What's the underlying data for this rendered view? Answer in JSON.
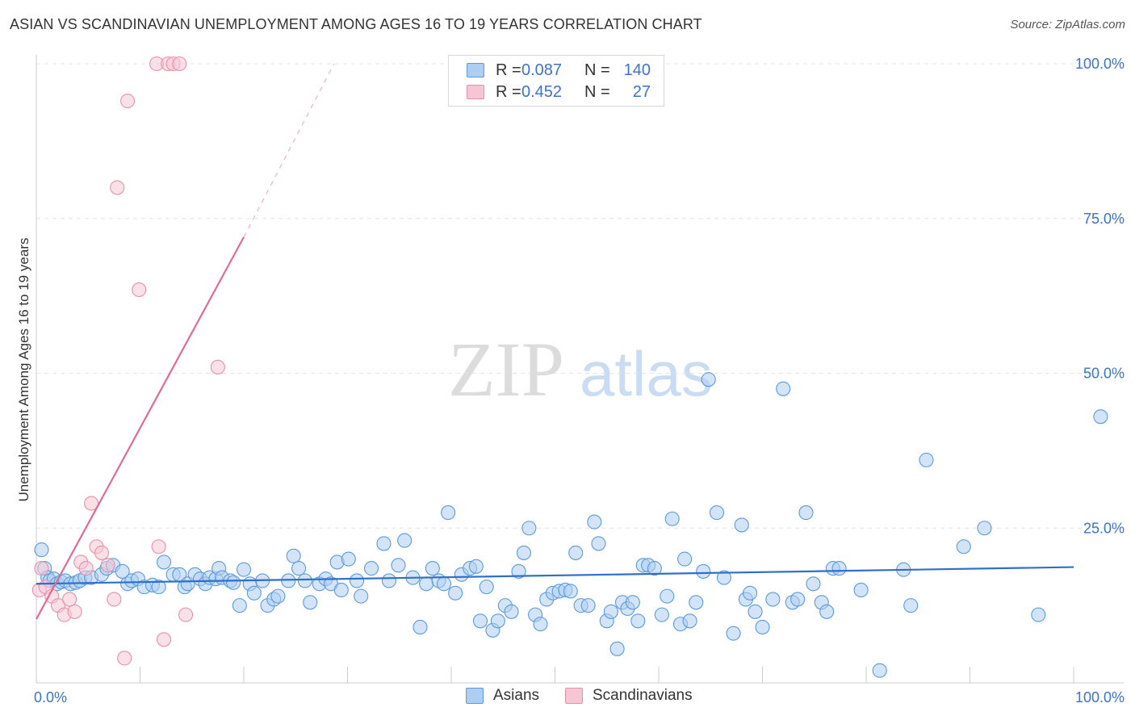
{
  "title": "ASIAN VS SCANDINAVIAN UNEMPLOYMENT AMONG AGES 16 TO 19 YEARS CORRELATION CHART",
  "source": "Source: ZipAtlas.com",
  "watermark": {
    "zip": "ZIP",
    "atlas": "atlas"
  },
  "colors": {
    "asians": "#5b9bdc",
    "asians_fill": "#aecdf2",
    "asians_line": "#2f6fc9",
    "scandinavians": "#e890aa",
    "scandinavians_fill": "#f6c6d4",
    "scandinavians_line": "#e06a95",
    "tick_label": "#3d72c8",
    "grid": "#e4e4e4"
  },
  "legend": {
    "rows": [
      {
        "r_label": "R =",
        "r_value": "0.087",
        "n_label": "N =",
        "n_value": "140"
      },
      {
        "r_label": "R =",
        "r_value": "0.452",
        "n_label": "N =",
        "n_value": "27"
      }
    ]
  },
  "chart_data": {
    "type": "scatter",
    "title": "ASIAN VS SCANDINAVIAN UNEMPLOYMENT AMONG AGES 16 TO 19 YEARS CORRELATION CHART",
    "xlabel": "",
    "ylabel": "Unemployment Among Ages 16 to 19 years",
    "xlim": [
      0,
      100
    ],
    "ylim": [
      0,
      100
    ],
    "x_tick_labels": [
      {
        "value": 0,
        "label": "0.0%"
      },
      {
        "value": 100,
        "label": "100.0%"
      }
    ],
    "y_tick_labels": [
      {
        "value": 25,
        "label": "25.0%"
      },
      {
        "value": 50,
        "label": "50.0%"
      },
      {
        "value": 75,
        "label": "75.0%"
      },
      {
        "value": 100,
        "label": "100.0%"
      }
    ],
    "grid": true,
    "series": [
      {
        "name": "Asians",
        "r": 0.087,
        "n": 140,
        "trend": {
          "x0": 0,
          "y0": 16.0,
          "x1": 100,
          "y1": 18.7,
          "dashed_from": null
        },
        "points": [
          [
            0.5,
            21.5
          ],
          [
            0.8,
            18.5
          ],
          [
            1.1,
            17.0
          ],
          [
            1.3,
            16.5
          ],
          [
            1.7,
            16.8
          ],
          [
            2.0,
            16.0
          ],
          [
            2.4,
            16.3
          ],
          [
            2.8,
            16.5
          ],
          [
            3.3,
            16.0
          ],
          [
            3.8,
            16.2
          ],
          [
            4.2,
            16.5
          ],
          [
            4.7,
            17.0
          ],
          [
            5.3,
            17.0
          ],
          [
            6.3,
            17.5
          ],
          [
            6.8,
            18.5
          ],
          [
            7.4,
            19.0
          ],
          [
            8.3,
            18.0
          ],
          [
            8.8,
            16.0
          ],
          [
            9.2,
            16.5
          ],
          [
            9.8,
            16.8
          ],
          [
            10.4,
            15.5
          ],
          [
            11.2,
            15.8
          ],
          [
            11.8,
            15.5
          ],
          [
            12.3,
            19.5
          ],
          [
            13.2,
            17.5
          ],
          [
            13.8,
            17.5
          ],
          [
            14.3,
            15.5
          ],
          [
            14.6,
            16.0
          ],
          [
            15.3,
            17.5
          ],
          [
            15.8,
            16.8
          ],
          [
            16.3,
            16.0
          ],
          [
            16.7,
            17.0
          ],
          [
            17.3,
            16.8
          ],
          [
            17.6,
            18.5
          ],
          [
            17.9,
            17.0
          ],
          [
            18.7,
            16.5
          ],
          [
            19.0,
            16.2
          ],
          [
            19.6,
            12.5
          ],
          [
            20.0,
            18.3
          ],
          [
            20.6,
            16.0
          ],
          [
            21.0,
            14.5
          ],
          [
            21.8,
            16.5
          ],
          [
            22.3,
            12.5
          ],
          [
            22.9,
            13.5
          ],
          [
            23.3,
            14.0
          ],
          [
            24.3,
            16.5
          ],
          [
            24.8,
            20.5
          ],
          [
            25.3,
            18.5
          ],
          [
            25.9,
            16.5
          ],
          [
            26.4,
            13.0
          ],
          [
            27.3,
            16.0
          ],
          [
            27.9,
            16.8
          ],
          [
            28.4,
            16.0
          ],
          [
            29.0,
            19.5
          ],
          [
            29.4,
            15.0
          ],
          [
            30.1,
            20.0
          ],
          [
            30.9,
            16.5
          ],
          [
            31.3,
            14.0
          ],
          [
            32.3,
            18.5
          ],
          [
            33.5,
            22.5
          ],
          [
            34.0,
            16.5
          ],
          [
            34.9,
            19.0
          ],
          [
            35.5,
            23.0
          ],
          [
            36.3,
            17.0
          ],
          [
            37.0,
            9.0
          ],
          [
            37.6,
            16.0
          ],
          [
            38.2,
            18.5
          ],
          [
            38.8,
            16.5
          ],
          [
            39.3,
            16.0
          ],
          [
            39.7,
            27.5
          ],
          [
            40.4,
            14.5
          ],
          [
            41.0,
            17.5
          ],
          [
            41.8,
            18.5
          ],
          [
            42.4,
            18.8
          ],
          [
            42.8,
            10.0
          ],
          [
            43.4,
            15.5
          ],
          [
            44.0,
            8.5
          ],
          [
            44.5,
            10.0
          ],
          [
            45.2,
            12.5
          ],
          [
            45.8,
            11.5
          ],
          [
            46.5,
            18.0
          ],
          [
            47.0,
            21.0
          ],
          [
            47.5,
            25.0
          ],
          [
            48.1,
            11.0
          ],
          [
            48.6,
            9.5
          ],
          [
            49.2,
            13.5
          ],
          [
            49.8,
            14.5
          ],
          [
            50.4,
            14.8
          ],
          [
            51.0,
            15.0
          ],
          [
            51.5,
            14.8
          ],
          [
            52.0,
            21.0
          ],
          [
            52.5,
            12.5
          ],
          [
            53.2,
            12.5
          ],
          [
            53.8,
            26.0
          ],
          [
            54.2,
            22.5
          ],
          [
            55.0,
            10.0
          ],
          [
            55.4,
            11.5
          ],
          [
            56.0,
            5.5
          ],
          [
            56.5,
            13.0
          ],
          [
            57.0,
            12.0
          ],
          [
            57.5,
            13.0
          ],
          [
            58.0,
            10.0
          ],
          [
            58.5,
            19.0
          ],
          [
            59.0,
            19.0
          ],
          [
            59.6,
            18.5
          ],
          [
            60.3,
            11.0
          ],
          [
            60.8,
            14.0
          ],
          [
            61.3,
            26.5
          ],
          [
            62.1,
            9.5
          ],
          [
            62.5,
            20.0
          ],
          [
            63.0,
            10.0
          ],
          [
            63.6,
            13.0
          ],
          [
            64.3,
            18.0
          ],
          [
            64.8,
            49.0
          ],
          [
            65.6,
            27.5
          ],
          [
            66.3,
            17.0
          ],
          [
            67.2,
            8.0
          ],
          [
            68.0,
            25.5
          ],
          [
            68.4,
            13.5
          ],
          [
            68.8,
            14.5
          ],
          [
            69.3,
            11.5
          ],
          [
            70.0,
            9.0
          ],
          [
            71.0,
            13.5
          ],
          [
            72.0,
            47.5
          ],
          [
            72.9,
            13.0
          ],
          [
            73.4,
            13.5
          ],
          [
            74.2,
            27.5
          ],
          [
            74.9,
            16.0
          ],
          [
            75.7,
            13.0
          ],
          [
            76.2,
            11.5
          ],
          [
            76.8,
            18.5
          ],
          [
            77.4,
            18.5
          ],
          [
            79.5,
            15.0
          ],
          [
            81.3,
            2.0
          ],
          [
            83.6,
            18.3
          ],
          [
            84.3,
            12.5
          ],
          [
            85.8,
            36.0
          ],
          [
            89.4,
            22.0
          ],
          [
            91.4,
            25.0
          ],
          [
            96.6,
            11.0
          ],
          [
            102.6,
            43.0
          ]
        ]
      },
      {
        "name": "Scandinavians",
        "r": 0.452,
        "n": 27,
        "trend": {
          "x0": 0,
          "y0": 10.3,
          "x1": 20,
          "y1": 72.0,
          "dashed_from": 20,
          "x_end": 28.7,
          "y_end": 100
        },
        "points": [
          [
            0.3,
            15.0
          ],
          [
            0.5,
            18.5
          ],
          [
            0.9,
            15.5
          ],
          [
            1.5,
            14.0
          ],
          [
            2.1,
            12.5
          ],
          [
            2.7,
            11.0
          ],
          [
            3.2,
            13.5
          ],
          [
            3.7,
            11.5
          ],
          [
            4.3,
            19.5
          ],
          [
            4.8,
            18.5
          ],
          [
            5.3,
            29.0
          ],
          [
            5.8,
            22.0
          ],
          [
            6.3,
            21.0
          ],
          [
            6.9,
            19.0
          ],
          [
            7.5,
            13.5
          ],
          [
            7.8,
            80.0
          ],
          [
            8.5,
            4.0
          ],
          [
            8.8,
            94.0
          ],
          [
            9.9,
            63.5
          ],
          [
            11.6,
            100.0
          ],
          [
            11.8,
            22.0
          ],
          [
            12.3,
            7.0
          ],
          [
            12.7,
            100.0
          ],
          [
            13.2,
            100.0
          ],
          [
            13.8,
            100.0
          ],
          [
            14.4,
            11.0
          ],
          [
            17.5,
            51.0
          ]
        ]
      }
    ]
  },
  "bottom_legend": [
    {
      "label": "Asians"
    },
    {
      "label": "Scandinavians"
    }
  ]
}
